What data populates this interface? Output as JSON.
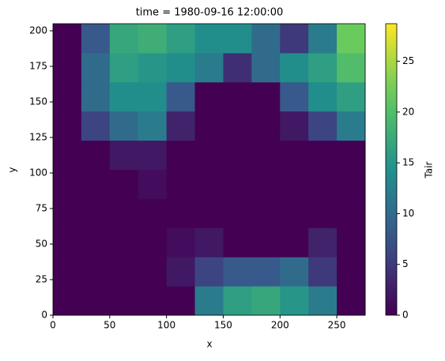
{
  "chart_data": {
    "type": "heatmap",
    "title": "time = 1980-09-16 12:00:00",
    "x_label": "x",
    "y_label": "y",
    "colorbar_label": "Tair",
    "colormap": "viridis",
    "x_edges": [
      0,
      25,
      50,
      75,
      100,
      125,
      150,
      175,
      200,
      225,
      250,
      275
    ],
    "y_edges": [
      0,
      20.5,
      41,
      61.5,
      82,
      102.5,
      123,
      143.5,
      164,
      184.5,
      205
    ],
    "z": [
      [
        0,
        0,
        0,
        0,
        0,
        12,
        16,
        17,
        15,
        12,
        0
      ],
      [
        0,
        0,
        0,
        0,
        2,
        6,
        8,
        8,
        10,
        5,
        0
      ],
      [
        0,
        0,
        0,
        0,
        1,
        2,
        0,
        0,
        0,
        3,
        0
      ],
      [
        0,
        0,
        0,
        0,
        0,
        0,
        0,
        0,
        0,
        0,
        0
      ],
      [
        0,
        0,
        0,
        1,
        0,
        0,
        0,
        0,
        0,
        0,
        0
      ],
      [
        0,
        0,
        2,
        2,
        0,
        0,
        0,
        0,
        0,
        0,
        0
      ],
      [
        0,
        6,
        10,
        12,
        3,
        0,
        0,
        0,
        2,
        6,
        12
      ],
      [
        0,
        10,
        14,
        14,
        8,
        0,
        0,
        0,
        8,
        14,
        16
      ],
      [
        0,
        10,
        16,
        15,
        14,
        12,
        4,
        10,
        14,
        16,
        20
      ],
      [
        0,
        8,
        17,
        18,
        16,
        14,
        14,
        10,
        5,
        12,
        22
      ]
    ],
    "xlim": [
      0,
      275
    ],
    "ylim": [
      0,
      205
    ],
    "xticks": [
      0,
      50,
      100,
      150,
      200,
      250
    ],
    "yticks": [
      0,
      25,
      50,
      75,
      100,
      125,
      150,
      175,
      200
    ],
    "clim": [
      0,
      28.7
    ],
    "cticks": [
      0,
      5,
      10,
      15,
      20,
      25
    ]
  }
}
